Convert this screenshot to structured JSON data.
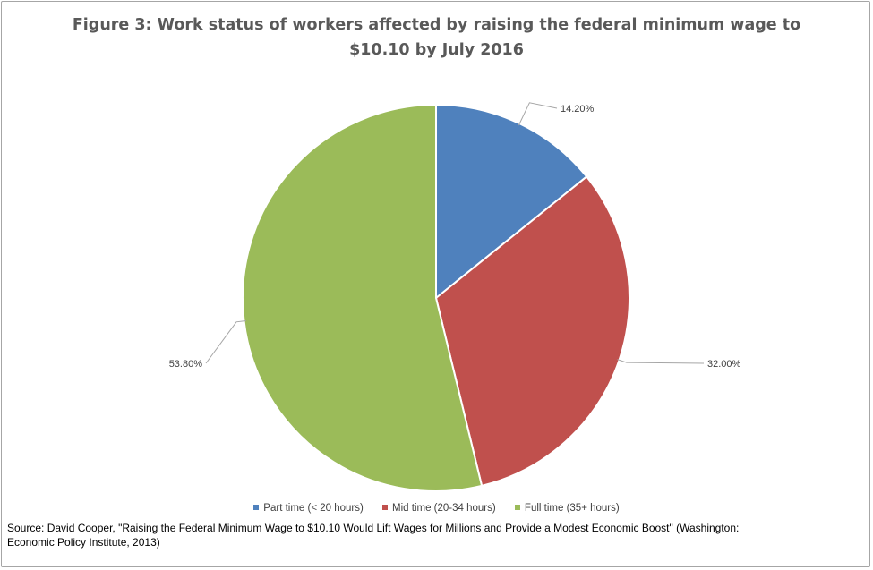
{
  "chart_data": {
    "type": "pie",
    "title_lines": [
      "Figure 3: Work status of workers affected by raising the federal minimum wage to",
      "$10.10 by July 2016"
    ],
    "slices": [
      {
        "label": "Part time (< 20 hours)",
        "value": 14.2,
        "display": "14.20%",
        "color": "#4f81bd"
      },
      {
        "label": "Mid time (20-34 hours)",
        "value": 32.0,
        "display": "32.00%",
        "color": "#c0504d"
      },
      {
        "label": "Full time (35+ hours)",
        "value": 53.8,
        "display": "53.80%",
        "color": "#9bbb59"
      }
    ],
    "start_angle": "12 o'clock",
    "direction": "clockwise",
    "legend_position": "bottom",
    "data_labels": "outside with leader lines"
  },
  "source": {
    "line1": "Source: David Cooper, \"Raising the Federal Minimum Wage to $10.10 Would Lift Wages for Millions and Provide a Modest Economic Boost\" (Washington:",
    "line2": "Economic Policy Institute, 2013)"
  }
}
